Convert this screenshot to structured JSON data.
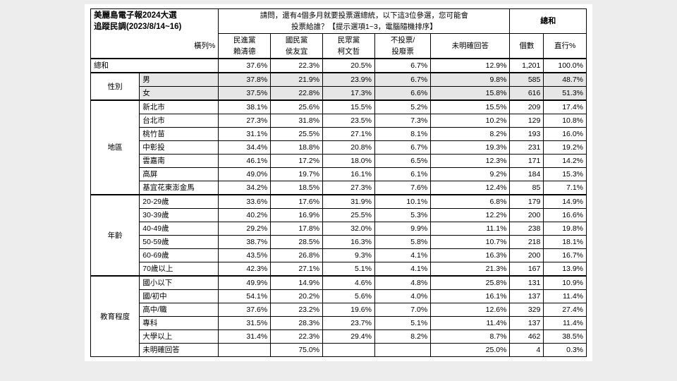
{
  "title_line1": "美麗島電子報2024大選",
  "title_line2": "追蹤民調(2023/8/14~16)",
  "row_pct_label": "橫列%",
  "question_line1": "請問，還有4個多月就要投票選總統，以下這3位參選，您可能會",
  "question_line2": "投票給誰？【提示選項1~3，電腦隨機排序】",
  "total_head": "總和",
  "cols": [
    {
      "l1": "民進黨",
      "l2": "賴清德"
    },
    {
      "l1": "國民黨",
      "l2": "侯友宜"
    },
    {
      "l1": "民眾黨",
      "l2": "柯文哲"
    },
    {
      "l1": "不投票/",
      "l2": "投廢票"
    },
    {
      "l1": "",
      "l2": "未明確回答"
    }
  ],
  "count_head": "個數",
  "colpct_head": "直行%",
  "total_row_label": "總和",
  "total_row": {
    "c": [
      "37.6%",
      "22.3%",
      "20.5%",
      "6.7%",
      "12.9%"
    ],
    "n": "1,201",
    "p": "100.0%"
  },
  "groups": [
    {
      "name": "性別",
      "shade": true,
      "rows": [
        {
          "label": "男",
          "c": [
            "37.8%",
            "21.9%",
            "23.9%",
            "6.7%",
            "9.8%"
          ],
          "n": "585",
          "p": "48.7%"
        },
        {
          "label": "女",
          "c": [
            "37.5%",
            "22.8%",
            "17.3%",
            "6.6%",
            "15.8%"
          ],
          "n": "616",
          "p": "51.3%"
        }
      ]
    },
    {
      "name": "地區",
      "shade": false,
      "rows": [
        {
          "label": "新北市",
          "c": [
            "38.1%",
            "25.6%",
            "15.5%",
            "5.2%",
            "15.5%"
          ],
          "n": "209",
          "p": "17.4%"
        },
        {
          "label": "台北市",
          "c": [
            "27.3%",
            "31.8%",
            "23.5%",
            "7.3%",
            "10.2%"
          ],
          "n": "129",
          "p": "10.8%"
        },
        {
          "label": "桃竹苗",
          "c": [
            "31.1%",
            "25.5%",
            "27.1%",
            "8.1%",
            "8.2%"
          ],
          "n": "193",
          "p": "16.0%"
        },
        {
          "label": "中彰投",
          "c": [
            "34.4%",
            "18.8%",
            "20.8%",
            "6.7%",
            "19.3%"
          ],
          "n": "231",
          "p": "19.2%"
        },
        {
          "label": "雲嘉南",
          "c": [
            "46.1%",
            "17.2%",
            "18.0%",
            "6.5%",
            "12.3%"
          ],
          "n": "171",
          "p": "14.2%"
        },
        {
          "label": "高屏",
          "c": [
            "49.0%",
            "19.7%",
            "16.1%",
            "6.1%",
            "9.2%"
          ],
          "n": "184",
          "p": "15.3%"
        },
        {
          "label": "基宜花東澎金馬",
          "c": [
            "34.2%",
            "18.5%",
            "27.3%",
            "7.6%",
            "12.4%"
          ],
          "n": "85",
          "p": "7.1%"
        }
      ]
    },
    {
      "name": "年齡",
      "shade": false,
      "rows": [
        {
          "label": "20-29歲",
          "c": [
            "33.6%",
            "17.6%",
            "31.9%",
            "10.1%",
            "6.8%"
          ],
          "n": "179",
          "p": "14.9%"
        },
        {
          "label": "30-39歲",
          "c": [
            "40.2%",
            "16.9%",
            "25.5%",
            "5.3%",
            "12.2%"
          ],
          "n": "200",
          "p": "16.6%"
        },
        {
          "label": "40-49歲",
          "c": [
            "29.2%",
            "17.8%",
            "32.0%",
            "9.9%",
            "11.1%"
          ],
          "n": "238",
          "p": "19.8%"
        },
        {
          "label": "50-59歲",
          "c": [
            "38.7%",
            "28.5%",
            "16.3%",
            "5.8%",
            "10.7%"
          ],
          "n": "218",
          "p": "18.1%"
        },
        {
          "label": "60-69歲",
          "c": [
            "43.5%",
            "26.8%",
            "9.3%",
            "4.1%",
            "16.3%"
          ],
          "n": "200",
          "p": "16.7%"
        },
        {
          "label": "70歲以上",
          "c": [
            "42.3%",
            "27.1%",
            "5.1%",
            "4.1%",
            "21.3%"
          ],
          "n": "167",
          "p": "13.9%"
        }
      ]
    },
    {
      "name": "教育程度",
      "shade": false,
      "rows": [
        {
          "label": "國小以下",
          "c": [
            "49.9%",
            "14.9%",
            "4.6%",
            "4.8%",
            "25.8%"
          ],
          "n": "131",
          "p": "10.9%"
        },
        {
          "label": "國/初中",
          "c": [
            "54.1%",
            "20.2%",
            "5.6%",
            "4.0%",
            "16.1%"
          ],
          "n": "137",
          "p": "11.4%"
        },
        {
          "label": "高中/職",
          "c": [
            "37.6%",
            "23.2%",
            "19.6%",
            "7.0%",
            "12.6%"
          ],
          "n": "329",
          "p": "27.4%"
        },
        {
          "label": "專科",
          "c": [
            "31.5%",
            "28.3%",
            "23.7%",
            "5.1%",
            "11.4%"
          ],
          "n": "137",
          "p": "11.4%"
        },
        {
          "label": "大學以上",
          "c": [
            "31.4%",
            "22.3%",
            "29.4%",
            "8.2%",
            "8.7%"
          ],
          "n": "462",
          "p": "38.5%"
        },
        {
          "label": "未明確回答",
          "c": [
            "",
            "75.0%",
            "",
            "",
            "25.0%"
          ],
          "n": "4",
          "p": "0.3%"
        }
      ]
    }
  ]
}
